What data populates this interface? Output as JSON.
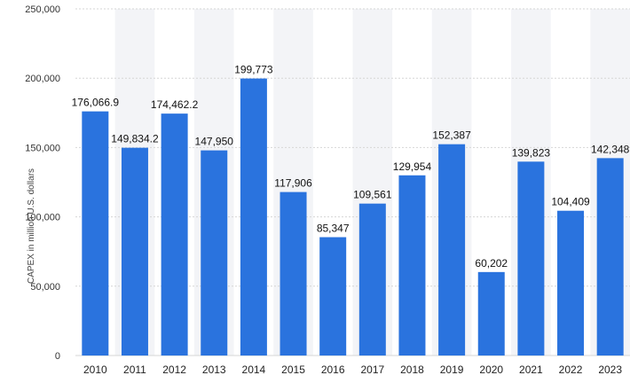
{
  "chart_data": {
    "type": "bar",
    "title": "",
    "xlabel": "",
    "ylabel": "CAPEX in million U.S. dollars",
    "categories": [
      "2010",
      "2011",
      "2012",
      "2013",
      "2014",
      "2015",
      "2016",
      "2017",
      "2018",
      "2019",
      "2020",
      "2021",
      "2022",
      "2023"
    ],
    "values": [
      176066.9,
      149834.2,
      174462.2,
      147950,
      199773,
      117906,
      85347,
      109561,
      129954,
      152387,
      60202,
      139823,
      104409,
      142348
    ],
    "value_labels": [
      "176,066.9",
      "149,834.2",
      "174,462.2",
      "147,950",
      "199,773",
      "117,906",
      "85,347",
      "109,561",
      "129,954",
      "152,387",
      "60,202",
      "139,823",
      "104,409",
      "142,348"
    ],
    "ylim": [
      0,
      250000
    ],
    "yticks": [
      0,
      50000,
      100000,
      150000,
      200000,
      250000
    ],
    "ytick_labels": [
      "0",
      "50,000",
      "100,000",
      "150,000",
      "200,000",
      "250,000"
    ],
    "grid": true,
    "legend": "none",
    "colors": {
      "bar": "#2a73de",
      "band": "#f3f4f7",
      "grid": "#d6d6d6"
    }
  }
}
